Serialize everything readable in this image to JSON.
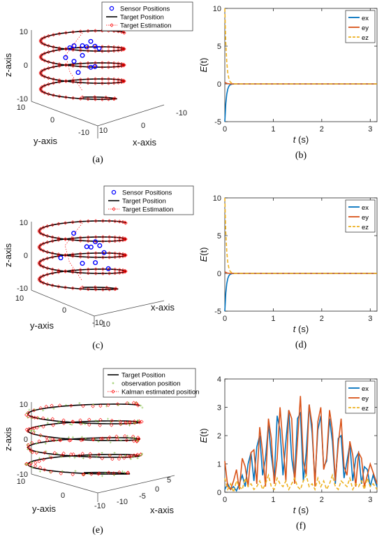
{
  "colors": {
    "ex": "#0072BD",
    "ey": "#D95319",
    "ez": "#EDB120",
    "sensor": "#0000FF",
    "target": "#000000",
    "estimate": "#FF0000",
    "observation": "#7FBF3F"
  },
  "chart_data": [
    {
      "id": "a",
      "type": "scatter",
      "caption": "(a)",
      "xlabel": "x-axis",
      "ylabel": "y-axis",
      "zlabel": "z-axis",
      "ztick_labels": [
        "10",
        "0",
        "-10"
      ],
      "ytick_labels": [
        "10",
        "0",
        "-10"
      ],
      "xtick_labels": [
        "10",
        "0",
        "-10"
      ],
      "series": [
        {
          "name": "Sensor Positions"
        },
        {
          "name": "Target Position"
        },
        {
          "name": "Target Estimation"
        }
      ],
      "sensor_points": [
        [
          2,
          -2,
          7
        ],
        [
          -2,
          3,
          6.5
        ],
        [
          0,
          0,
          6
        ],
        [
          3,
          2,
          6.2
        ],
        [
          1,
          -1,
          5.5
        ],
        [
          -3,
          -2,
          5
        ],
        [
          4,
          -1,
          5
        ],
        [
          0,
          3,
          3.5
        ],
        [
          -4,
          1,
          2.5
        ],
        [
          2,
          4,
          0
        ],
        [
          -1,
          -4,
          -3
        ],
        [
          3,
          -3,
          -1
        ],
        [
          -2,
          2,
          1.5
        ]
      ],
      "helix": {
        "radius": 10,
        "z_range": [
          -10,
          10
        ],
        "turns": 4
      }
    },
    {
      "id": "b",
      "type": "line",
      "caption": "(b)",
      "xlabel": "t (s)",
      "ylabel": "E(t)",
      "xlim": [
        0,
        3.14
      ],
      "ylim": [
        -5,
        10
      ],
      "xtick_labels": [
        "0",
        "1",
        "2",
        "3"
      ],
      "ytick_labels": [
        "-5",
        "0",
        "5",
        "10"
      ],
      "series": [
        {
          "name": "ex",
          "t": [
            0,
            0.02,
            0.04,
            0.06,
            0.08,
            0.1,
            0.12,
            0.15,
            0.2,
            0.3,
            1,
            2,
            3.14
          ],
          "values": [
            -5,
            -2.6,
            -1.35,
            -0.7,
            -0.35,
            -0.18,
            -0.09,
            -0.03,
            0,
            0,
            0,
            0,
            0
          ]
        },
        {
          "name": "ey",
          "t": [
            0,
            0.05,
            0.1,
            1,
            2,
            3.14
          ],
          "values": [
            0.2,
            0.05,
            0,
            0,
            0,
            0
          ]
        },
        {
          "name": "ez",
          "t": [
            0,
            0.02,
            0.04,
            0.06,
            0.08,
            0.1,
            0.12,
            0.15,
            0.2,
            0.3,
            1,
            2,
            3.14
          ],
          "values": [
            10,
            5.4,
            2.9,
            1.5,
            0.8,
            0.4,
            0.2,
            0.07,
            0.01,
            0,
            0,
            0,
            0
          ]
        }
      ]
    },
    {
      "id": "c",
      "type": "scatter",
      "caption": "(c)",
      "xlabel": "x-axis",
      "ylabel": "y-axis",
      "zlabel": "z-axis",
      "ztick_labels": [
        "10",
        "0",
        "-10"
      ],
      "ytick_labels": [
        "10",
        "0",
        "-10"
      ],
      "xtick_labels": [
        "-10"
      ],
      "series": [
        {
          "name": "Sensor Positions"
        },
        {
          "name": "Target Position"
        },
        {
          "name": "Target Estimation"
        }
      ],
      "sensor_points": [
        [
          -2,
          1,
          7
        ],
        [
          3,
          -1,
          4
        ],
        [
          1,
          2,
          3
        ],
        [
          4,
          0,
          3
        ],
        [
          2,
          -3,
          2
        ],
        [
          5,
          1,
          1
        ],
        [
          -5,
          -1,
          -1
        ],
        [
          0,
          3,
          -2
        ],
        [
          3,
          -4,
          -3
        ],
        [
          6,
          1,
          -4
        ]
      ],
      "helix": {
        "radius": 10,
        "z_range": [
          -10,
          10
        ],
        "turns": 4
      }
    },
    {
      "id": "d",
      "type": "line",
      "caption": "(d)",
      "xlabel": "t (s)",
      "ylabel": "E(t)",
      "xlim": [
        0,
        3.14
      ],
      "ylim": [
        -5,
        10
      ],
      "xtick_labels": [
        "0",
        "1",
        "2",
        "3"
      ],
      "ytick_labels": [
        "-5",
        "0",
        "5",
        "10"
      ],
      "series": [
        {
          "name": "ex",
          "t": [
            0,
            0.02,
            0.04,
            0.06,
            0.08,
            0.1,
            0.12,
            0.15,
            0.2,
            0.3,
            1,
            2,
            3.14
          ],
          "values": [
            -5,
            -2.6,
            -1.35,
            -0.7,
            -0.35,
            -0.18,
            -0.09,
            -0.03,
            0,
            0,
            0,
            0,
            0
          ]
        },
        {
          "name": "ey",
          "t": [
            0,
            0.05,
            0.1,
            1,
            2,
            3.14
          ],
          "values": [
            0.2,
            0.05,
            0,
            0,
            0,
            0
          ]
        },
        {
          "name": "ez",
          "t": [
            0,
            0.02,
            0.04,
            0.06,
            0.08,
            0.1,
            0.12,
            0.15,
            0.2,
            0.3,
            1,
            2,
            3.14
          ],
          "values": [
            10,
            5.4,
            2.9,
            1.5,
            0.8,
            0.4,
            0.2,
            0.07,
            0.01,
            0,
            0,
            0,
            0
          ]
        }
      ]
    },
    {
      "id": "e",
      "type": "scatter",
      "caption": "(e)",
      "xlabel": "x-axis",
      "ylabel": "y-axis",
      "zlabel": "z-axis",
      "ztick_labels": [
        "10",
        "0",
        "-10"
      ],
      "ytick_labels": [
        "10",
        "0",
        "-10"
      ],
      "xtick_labels": [
        "5",
        "0",
        "-5",
        "-10"
      ],
      "series": [
        {
          "name": "Target Position"
        },
        {
          "name": "observation position"
        },
        {
          "name": "Kalman estimated position"
        }
      ],
      "helix": {
        "radius": 10,
        "z_range": [
          -10,
          10
        ],
        "turns": 4
      }
    },
    {
      "id": "f",
      "type": "line",
      "caption": "(f)",
      "xlabel": "t (s)",
      "ylabel": "E(t)",
      "xlim": [
        0,
        3.14
      ],
      "ylim": [
        0,
        4
      ],
      "xtick_labels": [
        "0",
        "1",
        "2",
        "3"
      ],
      "ytick_labels": [
        "0",
        "1",
        "2",
        "3",
        "4"
      ],
      "series": [
        {
          "name": "ex",
          "t": [
            0,
            0.06,
            0.12,
            0.18,
            0.24,
            0.3,
            0.36,
            0.42,
            0.48,
            0.54,
            0.6,
            0.66,
            0.72,
            0.78,
            0.84,
            0.9,
            0.96,
            1.02,
            1.08,
            1.14,
            1.2,
            1.26,
            1.32,
            1.38,
            1.44,
            1.5,
            1.56,
            1.62,
            1.68,
            1.74,
            1.8,
            1.86,
            1.92,
            1.98,
            2.04,
            2.1,
            2.16,
            2.22,
            2.28,
            2.34,
            2.4,
            2.46,
            2.52,
            2.58,
            2.64,
            2.7,
            2.76,
            2.82,
            2.88,
            2.94,
            3.0,
            3.06,
            3.14
          ],
          "values": [
            0.1,
            0.3,
            0.1,
            0.2,
            0.05,
            0.3,
            0.6,
            0.2,
            1.0,
            1.4,
            0.4,
            1.6,
            2.0,
            0.6,
            1.2,
            2.4,
            1.3,
            0.5,
            2.7,
            2.2,
            0.6,
            1.8,
            2.9,
            1.2,
            0.5,
            2.6,
            2.8,
            0.4,
            1.4,
            3.1,
            2.1,
            0.4,
            2.2,
            2.7,
            0.9,
            1.1,
            2.6,
            1.8,
            0.3,
            1.9,
            2.0,
            0.5,
            1.1,
            1.7,
            0.4,
            1.2,
            1.4,
            0.3,
            0.9,
            0.8,
            0.2,
            0.6,
            0.2
          ]
        },
        {
          "name": "ey",
          "t": [
            0,
            0.06,
            0.12,
            0.18,
            0.24,
            0.3,
            0.36,
            0.42,
            0.48,
            0.54,
            0.6,
            0.66,
            0.72,
            0.78,
            0.84,
            0.9,
            0.96,
            1.02,
            1.08,
            1.14,
            1.2,
            1.26,
            1.32,
            1.38,
            1.44,
            1.5,
            1.56,
            1.62,
            1.68,
            1.74,
            1.8,
            1.86,
            1.92,
            1.98,
            2.04,
            2.1,
            2.16,
            2.22,
            2.28,
            2.34,
            2.4,
            2.46,
            2.52,
            2.58,
            2.64,
            2.7,
            2.76,
            2.82,
            2.88,
            2.94,
            3.0,
            3.06,
            3.14
          ],
          "values": [
            1.1,
            0.2,
            0.1,
            0.4,
            0.8,
            0.1,
            1.2,
            0.9,
            0.2,
            1.4,
            1.5,
            0.3,
            2.3,
            1.4,
            0.2,
            2.6,
            1.9,
            0.3,
            1.2,
            3.0,
            1.7,
            0.4,
            2.9,
            2.6,
            0.3,
            1.8,
            3.4,
            1.1,
            0.6,
            3.1,
            2.4,
            0.2,
            2.5,
            3.0,
            0.8,
            1.2,
            2.9,
            2.2,
            0.4,
            1.7,
            2.6,
            0.9,
            0.6,
            1.8,
            1.3,
            0.2,
            1.4,
            1.2,
            0.2,
            0.6,
            1.0,
            0.7,
            0.3
          ]
        },
        {
          "name": "ez",
          "t": [
            0,
            0.06,
            0.12,
            0.18,
            0.24,
            0.3,
            0.36,
            0.42,
            0.48,
            0.54,
            0.6,
            0.66,
            0.72,
            0.78,
            0.84,
            0.9,
            0.96,
            1.02,
            1.08,
            1.14,
            1.2,
            1.26,
            1.32,
            1.38,
            1.44,
            1.5,
            1.56,
            1.62,
            1.68,
            1.74,
            1.8,
            1.86,
            1.92,
            1.98,
            2.04,
            2.1,
            2.16,
            2.22,
            2.28,
            2.34,
            2.4,
            2.46,
            2.52,
            2.58,
            2.64,
            2.7,
            2.76,
            2.82,
            2.88,
            2.94,
            3.0,
            3.06,
            3.14
          ],
          "values": [
            0.5,
            0.1,
            0.3,
            0.0,
            0.4,
            0.2,
            0.1,
            0.5,
            0.2,
            0.3,
            0.1,
            0.2,
            0.4,
            0.1,
            0.3,
            0.6,
            0.2,
            0.1,
            0.5,
            0.3,
            0.2,
            0.4,
            0.1,
            0.3,
            0.5,
            0.2,
            0.1,
            0.4,
            0.6,
            0.2,
            0.3,
            0.1,
            0.5,
            0.2,
            0.4,
            0.1,
            0.3,
            0.6,
            0.2,
            0.1,
            0.4,
            0.3,
            0.2,
            0.5,
            0.1,
            0.3,
            0.2,
            0.4,
            0.1,
            0.5,
            0.2,
            0.3,
            0.1
          ]
        }
      ]
    }
  ]
}
